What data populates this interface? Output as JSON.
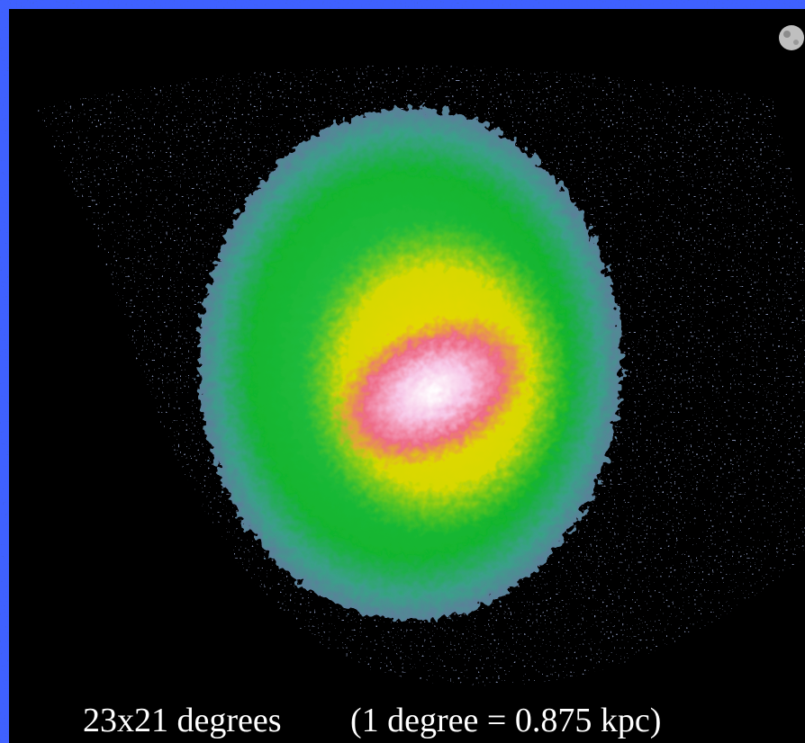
{
  "caption": {
    "extent": "23x21 degrees",
    "scale": "(1 degree = 0.875 kpc)"
  }
}
